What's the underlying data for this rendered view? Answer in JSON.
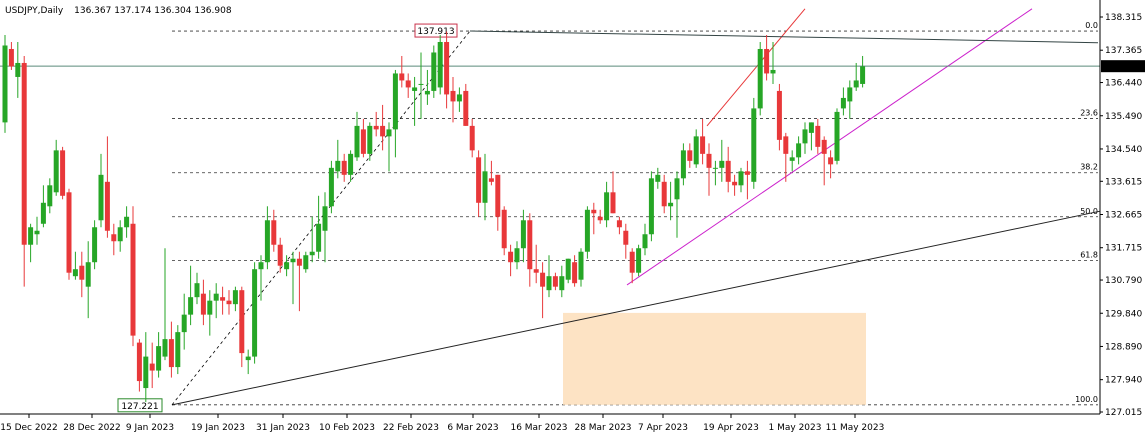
{
  "header": {
    "symbol": "USDJPY,Daily",
    "ohlc": "136.367 137.174 136.304 136.908"
  },
  "price_axis": {
    "ticks": [
      "138.315",
      "137.365",
      "136.440",
      "135.490",
      "134.540",
      "133.615",
      "132.665",
      "131.715",
      "130.790",
      "129.840",
      "128.890",
      "127.940",
      "127.015"
    ],
    "current_price_label": "136.908"
  },
  "time_axis": {
    "ticks": [
      "15 Dec 2022",
      "28 Dec 2022",
      "9 Jan 2023",
      "19 Jan 2023",
      "31 Jan 2023",
      "10 Feb 2023",
      "22 Feb 2023",
      "6 Mar 2023",
      "16 Mar 2023",
      "28 Mar 2023",
      "7 Apr 2023",
      "19 Apr 2023",
      "1 May 2023",
      "11 May 2023"
    ]
  },
  "fibonacci": {
    "levels": [
      {
        "label": "0.0",
        "price": 137.913
      },
      {
        "label": "23.6",
        "price": 135.41
      },
      {
        "label": "38.2",
        "price": 133.86
      },
      {
        "label": "50.0",
        "price": 132.6
      },
      {
        "label": "61.8",
        "price": 131.35
      },
      {
        "label": "100.0",
        "price": 127.221
      }
    ],
    "high_marker": "137.913",
    "low_marker": "127.221"
  },
  "colors": {
    "bull": "#26a626",
    "bear": "#e8383a",
    "fib_line": "#333333",
    "trend_magenta": "#cc22cc",
    "trend_red": "#e8383a",
    "trend_black": "#222222",
    "zone_fill": "#fde3c4",
    "price_line": "#5a8a7a",
    "high_marker_color": "#c8304a",
    "low_marker_color": "#2a8a2a"
  },
  "chart_data": {
    "type": "candlestick",
    "symbol": "USDJPY",
    "timeframe": "Daily",
    "ylim": [
      126.95,
      138.55
    ],
    "candles": [
      {
        "o": 135.3,
        "h": 137.8,
        "l": 135.0,
        "c": 137.5
      },
      {
        "o": 137.4,
        "h": 137.6,
        "l": 136.8,
        "c": 136.9
      },
      {
        "o": 136.6,
        "h": 137.6,
        "l": 136.0,
        "c": 137.0
      },
      {
        "o": 137.0,
        "h": 137.2,
        "l": 130.6,
        "c": 131.8
      },
      {
        "o": 131.8,
        "h": 132.4,
        "l": 131.3,
        "c": 132.3
      },
      {
        "o": 132.1,
        "h": 132.6,
        "l": 131.8,
        "c": 132.2
      },
      {
        "o": 132.4,
        "h": 133.5,
        "l": 132.3,
        "c": 133.0
      },
      {
        "o": 132.9,
        "h": 133.7,
        "l": 132.7,
        "c": 133.5
      },
      {
        "o": 133.3,
        "h": 134.8,
        "l": 133.2,
        "c": 134.5
      },
      {
        "o": 134.5,
        "h": 134.6,
        "l": 133.1,
        "c": 133.2
      },
      {
        "o": 133.3,
        "h": 133.4,
        "l": 130.8,
        "c": 131.0
      },
      {
        "o": 130.9,
        "h": 131.6,
        "l": 130.8,
        "c": 131.1
      },
      {
        "o": 131.2,
        "h": 131.6,
        "l": 130.3,
        "c": 130.8
      },
      {
        "o": 130.6,
        "h": 131.9,
        "l": 129.7,
        "c": 131.3
      },
      {
        "o": 131.3,
        "h": 132.5,
        "l": 131.1,
        "c": 132.3
      },
      {
        "o": 132.5,
        "h": 134.4,
        "l": 132.3,
        "c": 133.8
      },
      {
        "o": 133.6,
        "h": 134.9,
        "l": 132.0,
        "c": 132.2
      },
      {
        "o": 132.1,
        "h": 132.4,
        "l": 131.5,
        "c": 131.9
      },
      {
        "o": 131.9,
        "h": 132.5,
        "l": 131.6,
        "c": 132.3
      },
      {
        "o": 132.3,
        "h": 132.9,
        "l": 132.0,
        "c": 132.6
      },
      {
        "o": 132.4,
        "h": 132.9,
        "l": 128.9,
        "c": 129.2
      },
      {
        "o": 129.0,
        "h": 129.1,
        "l": 127.6,
        "c": 127.9
      },
      {
        "o": 127.7,
        "h": 129.3,
        "l": 127.3,
        "c": 128.6
      },
      {
        "o": 128.4,
        "h": 129.0,
        "l": 127.7,
        "c": 128.2
      },
      {
        "o": 128.2,
        "h": 129.3,
        "l": 128.0,
        "c": 128.9
      },
      {
        "o": 128.6,
        "h": 131.7,
        "l": 128.5,
        "c": 129.1
      },
      {
        "o": 129.1,
        "h": 129.6,
        "l": 128.0,
        "c": 128.3
      },
      {
        "o": 128.3,
        "h": 129.5,
        "l": 128.1,
        "c": 129.3
      },
      {
        "o": 129.3,
        "h": 130.4,
        "l": 128.8,
        "c": 129.8
      },
      {
        "o": 129.8,
        "h": 131.2,
        "l": 129.5,
        "c": 130.3
      },
      {
        "o": 130.3,
        "h": 131.0,
        "l": 130.1,
        "c": 130.7
      },
      {
        "o": 130.4,
        "h": 130.8,
        "l": 129.5,
        "c": 129.8
      },
      {
        "o": 129.8,
        "h": 130.5,
        "l": 129.2,
        "c": 130.2
      },
      {
        "o": 130.2,
        "h": 130.7,
        "l": 129.7,
        "c": 130.4
      },
      {
        "o": 130.3,
        "h": 130.6,
        "l": 129.8,
        "c": 130.2
      },
      {
        "o": 130.2,
        "h": 130.5,
        "l": 129.8,
        "c": 130.1
      },
      {
        "o": 130.1,
        "h": 130.6,
        "l": 129.9,
        "c": 130.5
      },
      {
        "o": 130.5,
        "h": 130.6,
        "l": 128.3,
        "c": 128.7
      },
      {
        "o": 128.5,
        "h": 128.8,
        "l": 128.1,
        "c": 128.6
      },
      {
        "o": 128.6,
        "h": 131.3,
        "l": 128.4,
        "c": 131.1
      },
      {
        "o": 131.1,
        "h": 131.5,
        "l": 130.2,
        "c": 131.3
      },
      {
        "o": 131.3,
        "h": 132.9,
        "l": 131.1,
        "c": 132.5
      },
      {
        "o": 132.5,
        "h": 132.8,
        "l": 131.6,
        "c": 131.8
      },
      {
        "o": 131.8,
        "h": 132.0,
        "l": 131.0,
        "c": 131.2
      },
      {
        "o": 131.1,
        "h": 131.5,
        "l": 130.9,
        "c": 131.3
      },
      {
        "o": 131.3,
        "h": 131.6,
        "l": 130.1,
        "c": 131.4
      },
      {
        "o": 131.4,
        "h": 131.6,
        "l": 129.9,
        "c": 131.2
      },
      {
        "o": 131.1,
        "h": 131.6,
        "l": 131.0,
        "c": 131.5
      },
      {
        "o": 131.5,
        "h": 132.6,
        "l": 131.3,
        "c": 131.6
      },
      {
        "o": 131.6,
        "h": 133.2,
        "l": 131.4,
        "c": 132.4
      },
      {
        "o": 132.2,
        "h": 133.3,
        "l": 131.3,
        "c": 132.9
      },
      {
        "o": 132.9,
        "h": 134.2,
        "l": 132.7,
        "c": 134.0
      },
      {
        "o": 133.9,
        "h": 134.8,
        "l": 133.7,
        "c": 134.2
      },
      {
        "o": 134.2,
        "h": 134.4,
        "l": 133.6,
        "c": 133.8
      },
      {
        "o": 133.8,
        "h": 134.5,
        "l": 133.6,
        "c": 134.4
      },
      {
        "o": 134.3,
        "h": 135.6,
        "l": 134.2,
        "c": 135.2
      },
      {
        "o": 135.1,
        "h": 135.4,
        "l": 134.3,
        "c": 134.4
      },
      {
        "o": 134.4,
        "h": 135.3,
        "l": 134.2,
        "c": 135.2
      },
      {
        "o": 135.2,
        "h": 135.6,
        "l": 134.9,
        "c": 135.1
      },
      {
        "o": 135.2,
        "h": 135.8,
        "l": 134.5,
        "c": 134.9
      },
      {
        "o": 134.9,
        "h": 135.3,
        "l": 133.9,
        "c": 135.1
      },
      {
        "o": 135.1,
        "h": 136.8,
        "l": 134.3,
        "c": 136.7
      },
      {
        "o": 136.7,
        "h": 137.2,
        "l": 136.3,
        "c": 136.5
      },
      {
        "o": 136.5,
        "h": 136.7,
        "l": 136.0,
        "c": 136.3
      },
      {
        "o": 136.2,
        "h": 136.6,
        "l": 135.2,
        "c": 136.3
      },
      {
        "o": 136.4,
        "h": 137.3,
        "l": 135.4,
        "c": 136.4
      },
      {
        "o": 136.1,
        "h": 136.8,
        "l": 135.8,
        "c": 136.2
      },
      {
        "o": 136.2,
        "h": 137.5,
        "l": 136.0,
        "c": 137.3
      },
      {
        "o": 136.3,
        "h": 137.8,
        "l": 136.1,
        "c": 137.6
      },
      {
        "o": 137.6,
        "h": 137.9,
        "l": 135.7,
        "c": 136.1
      },
      {
        "o": 136.2,
        "h": 136.6,
        "l": 135.3,
        "c": 135.9
      },
      {
        "o": 135.9,
        "h": 136.3,
        "l": 135.6,
        "c": 136.1
      },
      {
        "o": 136.2,
        "h": 136.4,
        "l": 135.2,
        "c": 135.2
      },
      {
        "o": 135.2,
        "h": 135.4,
        "l": 134.3,
        "c": 134.5
      },
      {
        "o": 134.3,
        "h": 134.5,
        "l": 132.6,
        "c": 133.0
      },
      {
        "o": 133.0,
        "h": 134.4,
        "l": 132.5,
        "c": 133.9
      },
      {
        "o": 133.7,
        "h": 134.2,
        "l": 133.5,
        "c": 133.6
      },
      {
        "o": 133.8,
        "h": 133.8,
        "l": 132.2,
        "c": 132.6
      },
      {
        "o": 132.8,
        "h": 132.9,
        "l": 131.5,
        "c": 131.7
      },
      {
        "o": 131.6,
        "h": 131.8,
        "l": 130.9,
        "c": 131.3
      },
      {
        "o": 131.3,
        "h": 131.9,
        "l": 131.1,
        "c": 131.7
      },
      {
        "o": 131.7,
        "h": 132.8,
        "l": 131.3,
        "c": 132.5
      },
      {
        "o": 132.5,
        "h": 132.7,
        "l": 130.6,
        "c": 131.1
      },
      {
        "o": 131.1,
        "h": 131.8,
        "l": 130.7,
        "c": 131.0
      },
      {
        "o": 131.0,
        "h": 131.3,
        "l": 129.7,
        "c": 130.6
      },
      {
        "o": 130.5,
        "h": 131.5,
        "l": 130.3,
        "c": 130.9
      },
      {
        "o": 130.9,
        "h": 131.0,
        "l": 130.5,
        "c": 130.6
      },
      {
        "o": 130.5,
        "h": 131.2,
        "l": 130.3,
        "c": 130.9
      },
      {
        "o": 130.8,
        "h": 131.4,
        "l": 130.7,
        "c": 131.4
      },
      {
        "o": 131.3,
        "h": 131.5,
        "l": 130.6,
        "c": 130.7
      },
      {
        "o": 130.8,
        "h": 131.7,
        "l": 130.6,
        "c": 131.6
      },
      {
        "o": 131.6,
        "h": 132.9,
        "l": 131.4,
        "c": 132.8
      },
      {
        "o": 132.8,
        "h": 133.0,
        "l": 132.1,
        "c": 132.7
      },
      {
        "o": 132.6,
        "h": 132.8,
        "l": 132.4,
        "c": 132.5
      },
      {
        "o": 132.5,
        "h": 133.6,
        "l": 132.3,
        "c": 133.3
      },
      {
        "o": 133.3,
        "h": 133.9,
        "l": 132.7,
        "c": 132.7
      },
      {
        "o": 132.5,
        "h": 132.6,
        "l": 132.1,
        "c": 132.3
      },
      {
        "o": 132.2,
        "h": 132.4,
        "l": 131.4,
        "c": 131.8
      },
      {
        "o": 131.6,
        "h": 131.7,
        "l": 130.7,
        "c": 131.0
      },
      {
        "o": 131.0,
        "h": 131.8,
        "l": 130.9,
        "c": 131.7
      },
      {
        "o": 131.7,
        "h": 132.4,
        "l": 131.5,
        "c": 132.1
      },
      {
        "o": 132.1,
        "h": 133.9,
        "l": 131.9,
        "c": 133.7
      },
      {
        "o": 133.6,
        "h": 134.0,
        "l": 133.4,
        "c": 133.8
      },
      {
        "o": 133.6,
        "h": 133.8,
        "l": 132.7,
        "c": 132.9
      },
      {
        "o": 132.9,
        "h": 133.6,
        "l": 132.5,
        "c": 133.0
      },
      {
        "o": 133.1,
        "h": 133.9,
        "l": 132.0,
        "c": 133.7
      },
      {
        "o": 133.7,
        "h": 134.7,
        "l": 133.5,
        "c": 134.5
      },
      {
        "o": 134.5,
        "h": 134.7,
        "l": 134.0,
        "c": 134.2
      },
      {
        "o": 134.1,
        "h": 135.1,
        "l": 134.0,
        "c": 134.9
      },
      {
        "o": 134.9,
        "h": 135.4,
        "l": 134.1,
        "c": 134.4
      },
      {
        "o": 134.4,
        "h": 134.7,
        "l": 133.2,
        "c": 134.0
      },
      {
        "o": 134.0,
        "h": 134.2,
        "l": 133.5,
        "c": 134.0
      },
      {
        "o": 134.0,
        "h": 134.8,
        "l": 133.6,
        "c": 134.2
      },
      {
        "o": 134.2,
        "h": 134.6,
        "l": 133.3,
        "c": 133.6
      },
      {
        "o": 133.6,
        "h": 133.8,
        "l": 133.2,
        "c": 133.5
      },
      {
        "o": 133.5,
        "h": 134.0,
        "l": 133.3,
        "c": 133.9
      },
      {
        "o": 133.9,
        "h": 134.2,
        "l": 133.1,
        "c": 133.8
      },
      {
        "o": 133.6,
        "h": 136.0,
        "l": 133.4,
        "c": 135.7
      },
      {
        "o": 135.7,
        "h": 137.6,
        "l": 135.5,
        "c": 137.4
      },
      {
        "o": 137.4,
        "h": 137.8,
        "l": 136.5,
        "c": 136.7
      },
      {
        "o": 136.7,
        "h": 137.6,
        "l": 136.4,
        "c": 136.8
      },
      {
        "o": 136.2,
        "h": 136.4,
        "l": 134.5,
        "c": 134.8
      },
      {
        "o": 134.9,
        "h": 135.0,
        "l": 133.6,
        "c": 134.4
      },
      {
        "o": 134.2,
        "h": 134.5,
        "l": 133.9,
        "c": 134.3
      },
      {
        "o": 134.3,
        "h": 134.9,
        "l": 134.1,
        "c": 134.7
      },
      {
        "o": 134.7,
        "h": 135.3,
        "l": 134.4,
        "c": 135.1
      },
      {
        "o": 135.0,
        "h": 135.3,
        "l": 134.5,
        "c": 135.3
      },
      {
        "o": 135.2,
        "h": 135.4,
        "l": 134.4,
        "c": 134.6
      },
      {
        "o": 134.8,
        "h": 134.9,
        "l": 133.5,
        "c": 134.4
      },
      {
        "o": 134.3,
        "h": 134.5,
        "l": 133.7,
        "c": 134.1
      },
      {
        "o": 134.2,
        "h": 135.7,
        "l": 134.1,
        "c": 135.6
      },
      {
        "o": 135.7,
        "h": 136.3,
        "l": 135.5,
        "c": 136.0
      },
      {
        "o": 135.9,
        "h": 136.5,
        "l": 135.4,
        "c": 136.3
      },
      {
        "o": 136.3,
        "h": 137.0,
        "l": 136.2,
        "c": 136.5
      },
      {
        "o": 136.4,
        "h": 137.2,
        "l": 136.3,
        "c": 136.9
      }
    ]
  }
}
